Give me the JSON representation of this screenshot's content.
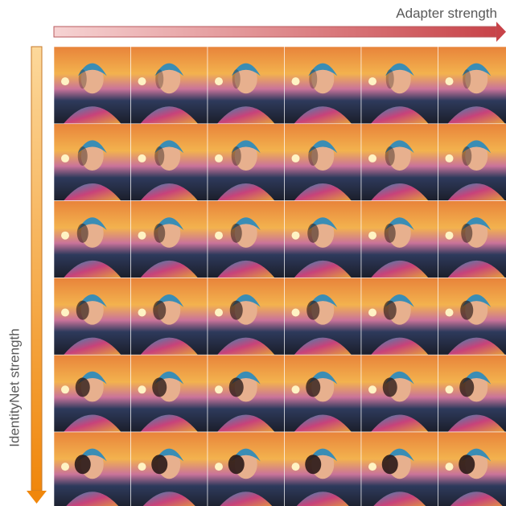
{
  "header": {
    "x_axis_label": "Adapter strength",
    "y_axis_label": "IdentityNet strength"
  }
}
